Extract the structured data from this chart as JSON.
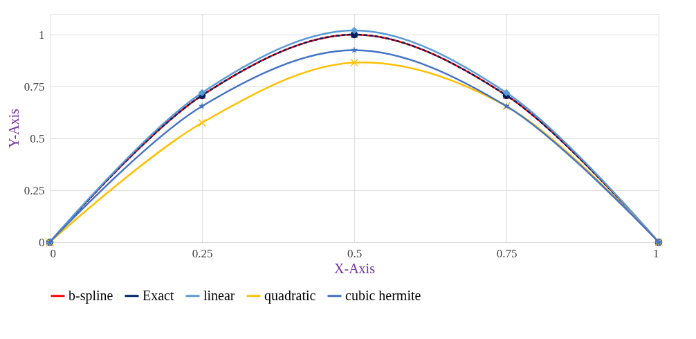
{
  "chart_data": {
    "type": "line",
    "xlabel": "X-Axis",
    "ylabel": "Y-Axis",
    "x": [
      0,
      0.25,
      0.5,
      0.75,
      1
    ],
    "series": [
      {
        "name": "b-spline",
        "color": "#ff0000",
        "marker": "triangle",
        "line_style": "solid",
        "values": [
          0,
          0.707,
          1,
          0.707,
          0
        ]
      },
      {
        "name": "Exact",
        "color": "#002060",
        "marker": "circle",
        "line_style": "dashed",
        "values": [
          0,
          0.707,
          1,
          0.707,
          0
        ]
      },
      {
        "name": "linear",
        "color": "#5b9bd5",
        "marker": "diamond",
        "line_style": "solid",
        "values": [
          0,
          0.72,
          1.02,
          0.72,
          0
        ]
      },
      {
        "name": "quadratic",
        "color": "#ffc000",
        "marker": "cross",
        "line_style": "solid",
        "values": [
          0,
          0.575,
          0.865,
          0.655,
          0
        ]
      },
      {
        "name": "cubic hermite",
        "color": "#4472c4",
        "marker": "star",
        "line_style": "solid",
        "values": [
          0,
          0.655,
          0.925,
          0.655,
          0
        ]
      }
    ],
    "xlim": [
      0,
      1
    ],
    "xticks": [
      0,
      0.25,
      0.5,
      0.75,
      1
    ],
    "ylim": [
      0,
      1.1
    ],
    "yticks": [
      0,
      0.25,
      0.5,
      0.75,
      1
    ],
    "grid": true,
    "legend": "bottom"
  }
}
